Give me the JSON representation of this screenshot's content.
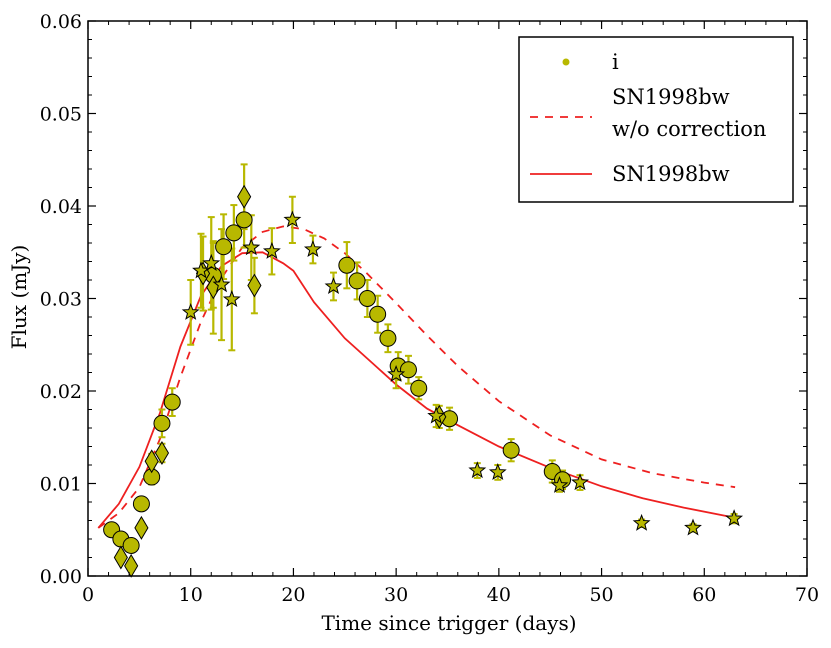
{
  "chart_data": {
    "type": "scatter",
    "title": "",
    "xlabel": "Time since trigger (days)",
    "ylabel": "Flux (mJy)",
    "xlim": [
      0,
      70
    ],
    "ylim": [
      0,
      0.06
    ],
    "xticks": [
      0,
      10,
      20,
      30,
      40,
      50,
      60,
      70
    ],
    "yticks": [
      0.0,
      0.01,
      0.02,
      0.03,
      0.04,
      0.05,
      0.06
    ],
    "xtick_labels": [
      "0",
      "10",
      "20",
      "30",
      "40",
      "50",
      "60",
      "70"
    ],
    "ytick_labels": [
      "0.00",
      "0.01",
      "0.02",
      "0.03",
      "0.04",
      "0.05",
      "0.06"
    ],
    "legend": {
      "placement": "top-right",
      "entries": [
        {
          "label": "i",
          "style": "point"
        },
        {
          "label": "SN1998bw",
          "label2": "w/o correction",
          "style": "dashed"
        },
        {
          "label": "SN1998bw",
          "style": "solid"
        }
      ]
    },
    "colors": {
      "marker_fill": "#b8b800",
      "errorbar": "#b8b800",
      "model": "#ee2020",
      "axis": "#000000"
    },
    "series": [
      {
        "name": "i (circles)",
        "marker": "circle",
        "points": [
          {
            "x": 2.3,
            "y": 0.005,
            "err": 0.0004
          },
          {
            "x": 3.2,
            "y": 0.004,
            "err": 0.0004
          },
          {
            "x": 4.2,
            "y": 0.0033,
            "err": 0.0004
          },
          {
            "x": 5.2,
            "y": 0.0078,
            "err": 0.0006
          },
          {
            "x": 6.2,
            "y": 0.0107,
            "err": 0.0008
          },
          {
            "x": 7.2,
            "y": 0.0165,
            "err": 0.0015
          },
          {
            "x": 8.2,
            "y": 0.0188,
            "err": 0.0015
          },
          {
            "x": 12.2,
            "y": 0.0325,
            "err": 0.0035
          },
          {
            "x": 13.2,
            "y": 0.0356,
            "err": 0.0035
          },
          {
            "x": 14.2,
            "y": 0.0371,
            "err": 0.003
          },
          {
            "x": 15.2,
            "y": 0.0385,
            "err": 0.003
          },
          {
            "x": 25.2,
            "y": 0.0336,
            "err": 0.0025
          },
          {
            "x": 26.2,
            "y": 0.0319,
            "err": 0.002
          },
          {
            "x": 27.2,
            "y": 0.03,
            "err": 0.002
          },
          {
            "x": 28.2,
            "y": 0.0283,
            "err": 0.002
          },
          {
            "x": 29.2,
            "y": 0.0257,
            "err": 0.0015
          },
          {
            "x": 30.2,
            "y": 0.0227,
            "err": 0.0015
          },
          {
            "x": 31.2,
            "y": 0.0223,
            "err": 0.0015
          },
          {
            "x": 32.2,
            "y": 0.0203,
            "err": 0.0012
          },
          {
            "x": 35.2,
            "y": 0.017,
            "err": 0.0012
          },
          {
            "x": 41.2,
            "y": 0.0136,
            "err": 0.0012
          },
          {
            "x": 45.2,
            "y": 0.0113,
            "err": 0.0012
          },
          {
            "x": 46.2,
            "y": 0.0104,
            "err": 0.001
          }
        ]
      },
      {
        "name": "i (diamonds)",
        "marker": "diamond",
        "points": [
          {
            "x": 3.2,
            "y": 0.002,
            "err": 0.0003
          },
          {
            "x": 4.2,
            "y": 0.0011,
            "err": 0.0003
          },
          {
            "x": 5.2,
            "y": 0.0052,
            "err": 0.0005
          },
          {
            "x": 6.2,
            "y": 0.0124,
            "err": 0.0008
          },
          {
            "x": 7.2,
            "y": 0.0133,
            "err": 0.001
          },
          {
            "x": 11.2,
            "y": 0.0327,
            "err": 0.004
          },
          {
            "x": 12.2,
            "y": 0.0312,
            "err": 0.005
          },
          {
            "x": 15.2,
            "y": 0.041,
            "err": 0.0035
          },
          {
            "x": 16.2,
            "y": 0.0314,
            "err": 0.003
          },
          {
            "x": 34.2,
            "y": 0.0172,
            "err": 0.0012
          }
        ]
      },
      {
        "name": "i (stars)",
        "marker": "star",
        "points": [
          {
            "x": 10.0,
            "y": 0.0285,
            "err": 0.0035
          },
          {
            "x": 11.0,
            "y": 0.033,
            "err": 0.004
          },
          {
            "x": 12.0,
            "y": 0.0338,
            "err": 0.005
          },
          {
            "x": 13.0,
            "y": 0.0315,
            "err": 0.006
          },
          {
            "x": 14.0,
            "y": 0.0299,
            "err": 0.0055
          },
          {
            "x": 15.9,
            "y": 0.0355,
            "err": 0.0035
          },
          {
            "x": 17.9,
            "y": 0.0351,
            "err": 0.0025
          },
          {
            "x": 19.9,
            "y": 0.0385,
            "err": 0.0025
          },
          {
            "x": 21.9,
            "y": 0.0353,
            "err": 0.0015
          },
          {
            "x": 23.9,
            "y": 0.0313,
            "err": 0.0015
          },
          {
            "x": 30.0,
            "y": 0.0218,
            "err": 0.0015
          },
          {
            "x": 33.9,
            "y": 0.0173,
            "err": 0.0012
          },
          {
            "x": 37.9,
            "y": 0.0114,
            "err": 0.0008
          },
          {
            "x": 39.9,
            "y": 0.0112,
            "err": 0.0008
          },
          {
            "x": 45.9,
            "y": 0.0098,
            "err": 0.0007
          },
          {
            "x": 47.9,
            "y": 0.0101,
            "err": 0.0008
          },
          {
            "x": 53.9,
            "y": 0.0057,
            "err": 0.0004
          },
          {
            "x": 58.9,
            "y": 0.0052,
            "err": 0.0004
          },
          {
            "x": 62.9,
            "y": 0.0062,
            "err": 0.0005
          }
        ]
      }
    ],
    "models": [
      {
        "name": "SN1998bw w/o correction",
        "style": "dashed",
        "x": [
          1,
          3,
          5,
          7,
          9,
          11,
          13,
          15,
          17,
          19,
          21,
          23,
          25,
          27,
          30,
          33,
          36,
          40,
          45,
          50,
          55,
          60,
          63
        ],
        "y": [
          0.0052,
          0.0068,
          0.0096,
          0.0148,
          0.0215,
          0.0275,
          0.0322,
          0.0355,
          0.0372,
          0.0378,
          0.0375,
          0.0365,
          0.0349,
          0.0329,
          0.0295,
          0.026,
          0.0227,
          0.0189,
          0.0152,
          0.0126,
          0.0111,
          0.0101,
          0.0096
        ]
      },
      {
        "name": "SN1998bw",
        "style": "solid",
        "x": [
          1,
          3,
          5,
          7,
          9,
          11,
          13,
          15,
          17,
          19,
          20,
          22,
          25,
          28,
          30,
          33,
          36,
          40,
          45,
          50,
          54,
          58,
          63
        ],
        "y": [
          0.0052,
          0.0078,
          0.0118,
          0.0176,
          0.0248,
          0.0303,
          0.0335,
          0.0349,
          0.035,
          0.0338,
          0.033,
          0.0296,
          0.0257,
          0.0227,
          0.0207,
          0.0181,
          0.0163,
          0.014,
          0.0117,
          0.0097,
          0.0084,
          0.0074,
          0.0063
        ]
      }
    ]
  }
}
